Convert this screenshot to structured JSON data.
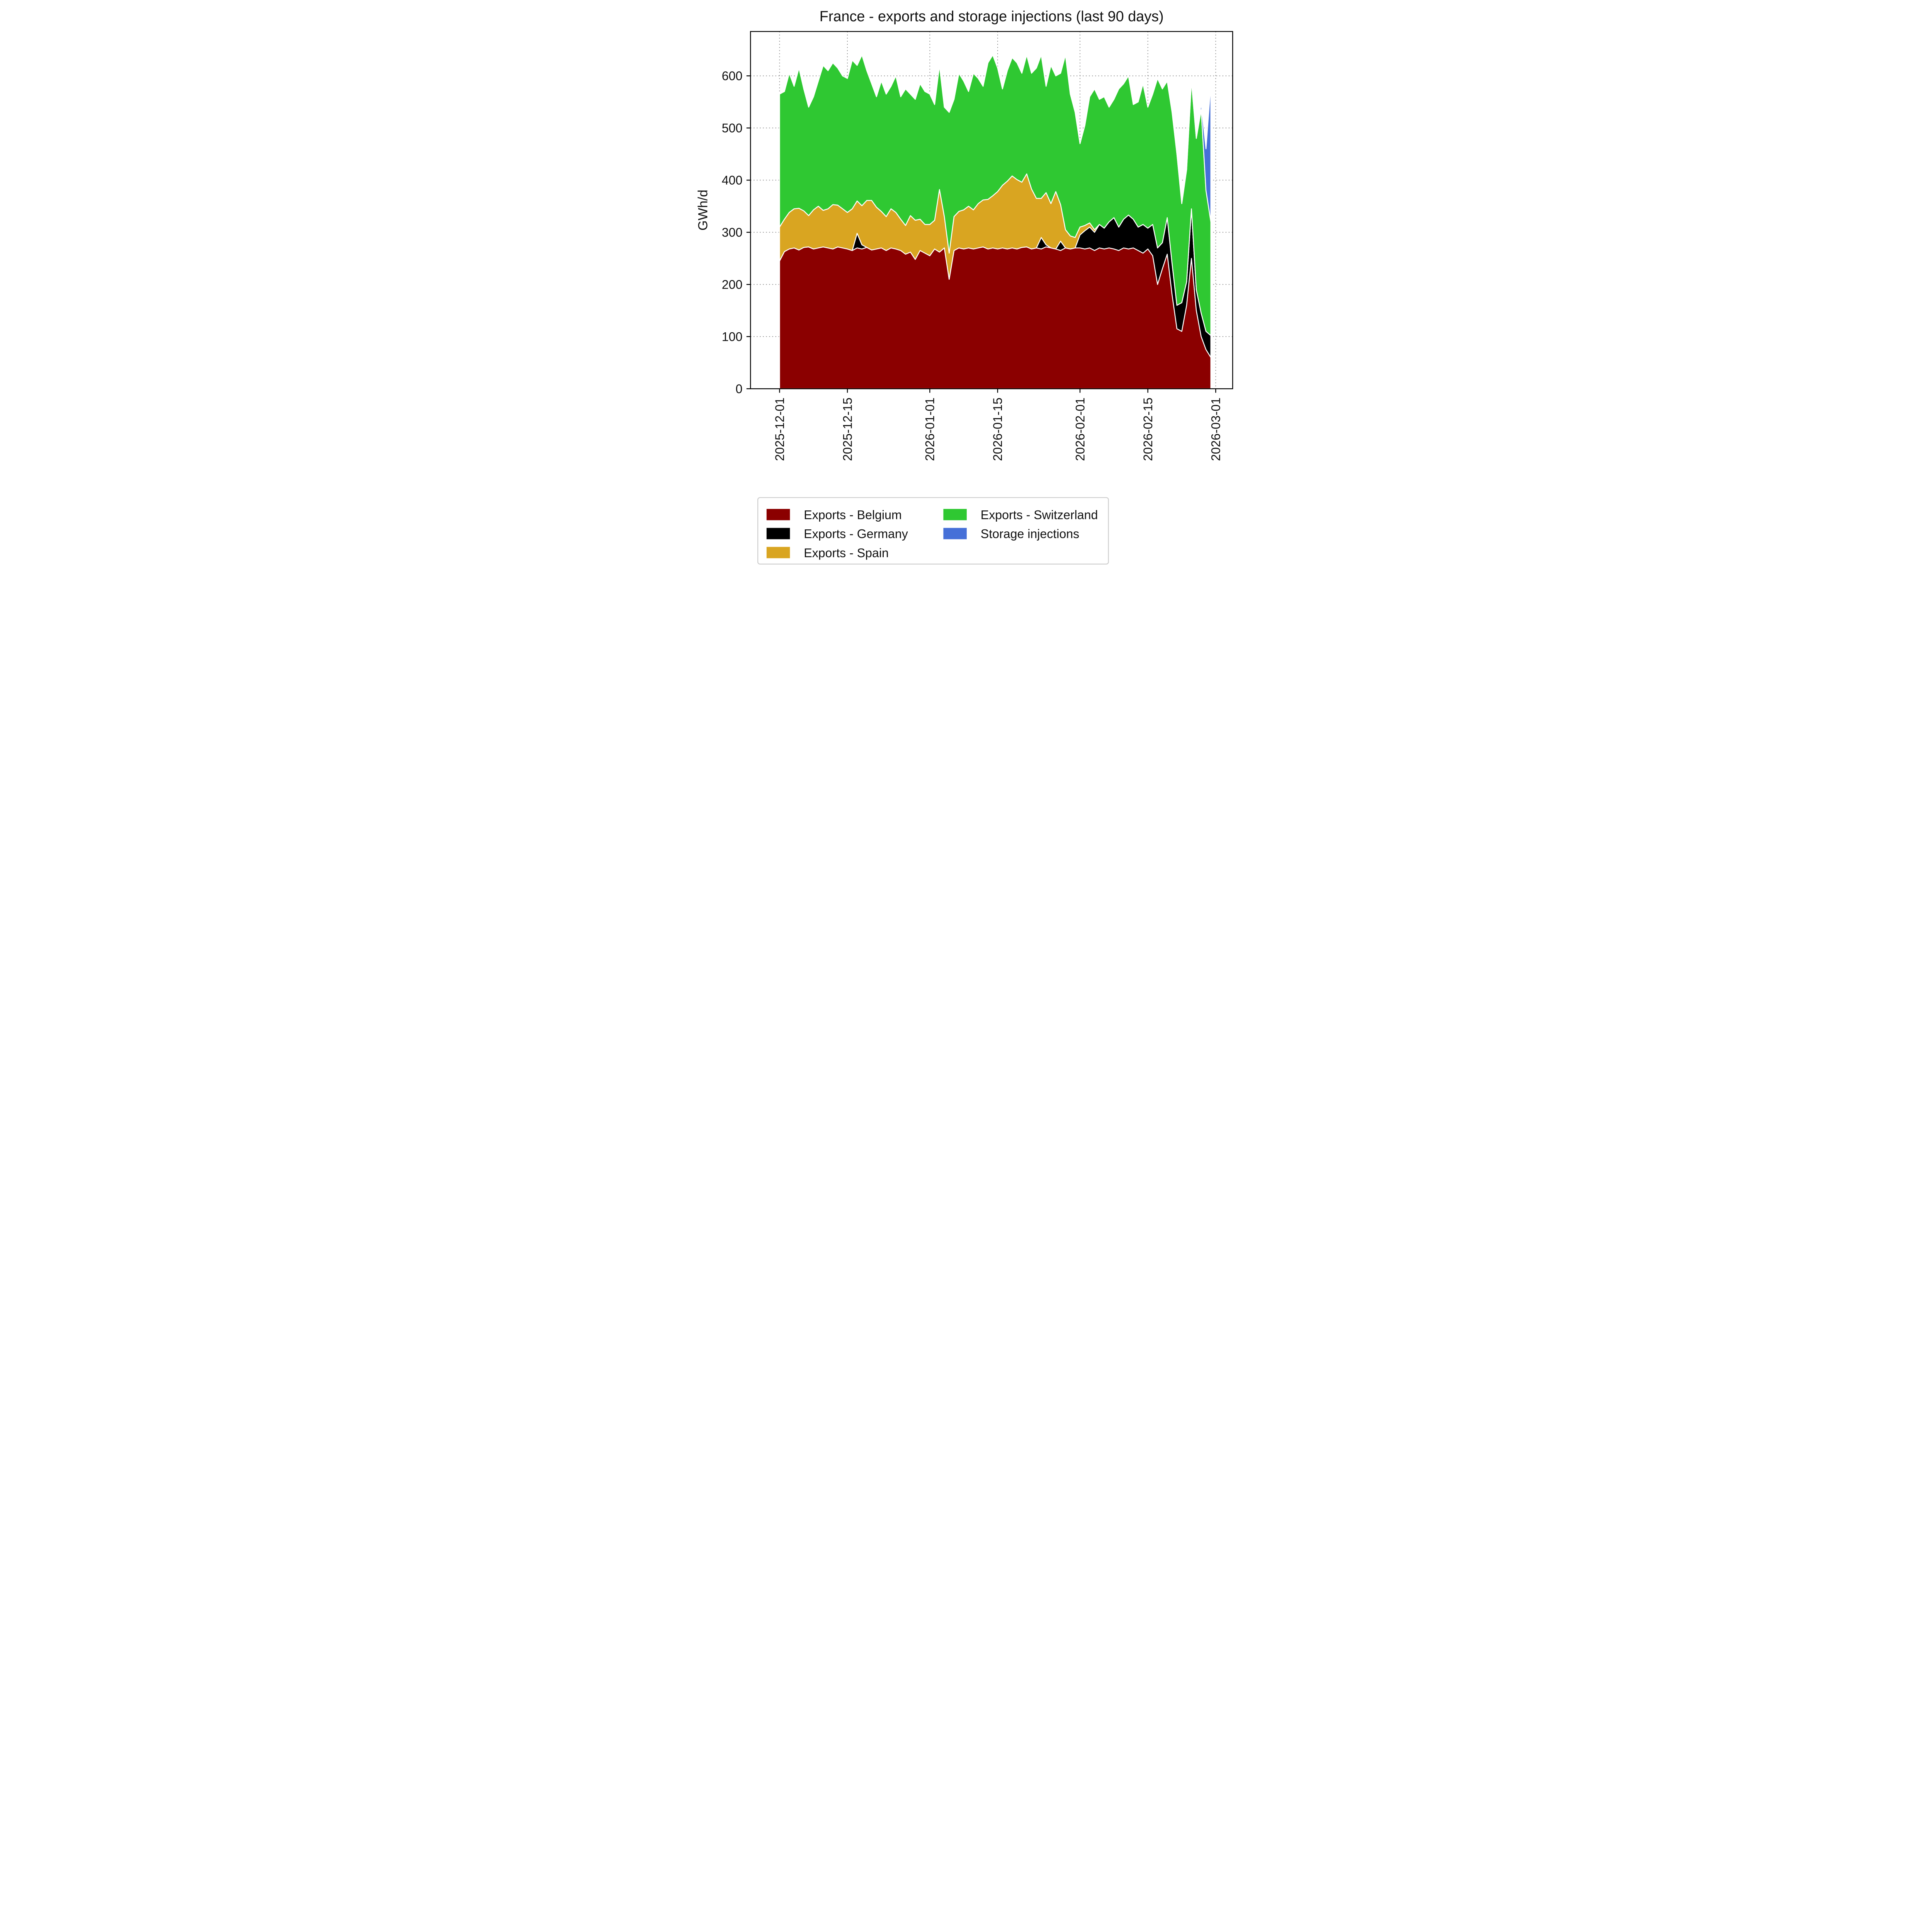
{
  "chart_data": {
    "type": "area",
    "stacked": true,
    "title": "France - exports and storage injections (last 90 days)",
    "xlabel": "",
    "ylabel": "GWh/d",
    "ylim": [
      0,
      685
    ],
    "grid": "dotted",
    "legend_position": "bottom-left",
    "x_ticks": [
      "2025-12-01",
      "2025-12-15",
      "2026-01-01",
      "2026-01-15",
      "2026-02-01",
      "2026-02-15",
      "2026-03-01"
    ],
    "y_ticks": [
      0,
      100,
      200,
      300,
      400,
      500,
      600
    ],
    "x": [
      "2025-12-01",
      "2025-12-02",
      "2025-12-03",
      "2025-12-04",
      "2025-12-05",
      "2025-12-06",
      "2025-12-07",
      "2025-12-08",
      "2025-12-09",
      "2025-12-10",
      "2025-12-11",
      "2025-12-12",
      "2025-12-13",
      "2025-12-14",
      "2025-12-15",
      "2025-12-16",
      "2025-12-17",
      "2025-12-18",
      "2025-12-19",
      "2025-12-20",
      "2025-12-21",
      "2025-12-22",
      "2025-12-23",
      "2025-12-24",
      "2025-12-25",
      "2025-12-26",
      "2025-12-27",
      "2025-12-28",
      "2025-12-29",
      "2025-12-30",
      "2025-12-31",
      "2026-01-01",
      "2026-01-02",
      "2026-01-03",
      "2026-01-04",
      "2026-01-05",
      "2026-01-06",
      "2026-01-07",
      "2026-01-08",
      "2026-01-09",
      "2026-01-10",
      "2026-01-11",
      "2026-01-12",
      "2026-01-13",
      "2026-01-14",
      "2026-01-15",
      "2026-01-16",
      "2026-01-17",
      "2026-01-18",
      "2026-01-19",
      "2026-01-20",
      "2026-01-21",
      "2026-01-22",
      "2026-01-23",
      "2026-01-24",
      "2026-01-25",
      "2026-01-26",
      "2026-01-27",
      "2026-01-28",
      "2026-01-29",
      "2026-01-30",
      "2026-01-31",
      "2026-02-01",
      "2026-02-02",
      "2026-02-03",
      "2026-02-04",
      "2026-02-05",
      "2026-02-06",
      "2026-02-07",
      "2026-02-08",
      "2026-02-09",
      "2026-02-10",
      "2026-02-11",
      "2026-02-12",
      "2026-02-13",
      "2026-02-14",
      "2026-02-15",
      "2026-02-16",
      "2026-02-17",
      "2026-02-18",
      "2026-02-19",
      "2026-02-20",
      "2026-02-21",
      "2026-02-22",
      "2026-02-23",
      "2026-02-24",
      "2026-02-25",
      "2026-02-26",
      "2026-02-27",
      "2026-02-28"
    ],
    "series": [
      {
        "name": "Exports - Belgium",
        "color": "#8b0000",
        "values": [
          245,
          263,
          268,
          270,
          266,
          271,
          272,
          268,
          270,
          272,
          270,
          268,
          272,
          270,
          268,
          265,
          270,
          268,
          271,
          266,
          268,
          270,
          265,
          270,
          268,
          265,
          258,
          262,
          248,
          265,
          260,
          255,
          268,
          262,
          270,
          210,
          265,
          270,
          268,
          270,
          268,
          270,
          272,
          268,
          270,
          268,
          270,
          268,
          270,
          268,
          271,
          272,
          268,
          270,
          268,
          272,
          270,
          268,
          265,
          270,
          268,
          270,
          270,
          268,
          270,
          265,
          270,
          268,
          270,
          268,
          265,
          270,
          268,
          270,
          265,
          260,
          268,
          255,
          200,
          230,
          258,
          180,
          115,
          110,
          160,
          250,
          150,
          100,
          75,
          60
        ]
      },
      {
        "name": "Exports - Germany",
        "color": "#000000",
        "values": [
          0,
          0,
          0,
          0,
          0,
          0,
          0,
          0,
          0,
          0,
          0,
          0,
          0,
          0,
          0,
          0,
          28,
          8,
          0,
          0,
          0,
          0,
          0,
          0,
          0,
          0,
          0,
          0,
          0,
          0,
          0,
          0,
          0,
          0,
          0,
          0,
          0,
          0,
          0,
          0,
          0,
          0,
          0,
          0,
          0,
          0,
          0,
          0,
          0,
          0,
          0,
          0,
          0,
          0,
          22,
          4,
          0,
          0,
          18,
          0,
          0,
          0,
          25,
          35,
          40,
          35,
          45,
          40,
          50,
          60,
          45,
          55,
          65,
          55,
          45,
          55,
          40,
          60,
          70,
          50,
          70,
          60,
          45,
          55,
          45,
          95,
          40,
          45,
          35,
          42
        ]
      },
      {
        "name": "Exports - Spain",
        "color": "#d9a521",
        "values": [
          65,
          62,
          70,
          75,
          80,
          70,
          60,
          75,
          80,
          70,
          75,
          85,
          80,
          75,
          70,
          80,
          62,
          75,
          90,
          95,
          80,
          70,
          65,
          75,
          70,
          60,
          55,
          70,
          75,
          60,
          55,
          60,
          55,
          120,
          60,
          50,
          65,
          70,
          75,
          80,
          75,
          85,
          90,
          95,
          100,
          110,
          120,
          130,
          138,
          133,
          125,
          140,
          115,
          95,
          75,
          100,
          85,
          110,
          70,
          35,
          25,
          20,
          15,
          10,
          8,
          5,
          0,
          0,
          0,
          0,
          0,
          0,
          0,
          0,
          0,
          0,
          0,
          0,
          0,
          0,
          0,
          0,
          0,
          0,
          0,
          0,
          0,
          0,
          0,
          0
        ]
      },
      {
        "name": "Exports - Switzerland",
        "color": "#2fc832",
        "values": [
          255,
          245,
          267,
          235,
          269,
          234,
          208,
          217,
          240,
          278,
          265,
          272,
          263,
          255,
          257,
          285,
          260,
          289,
          249,
          224,
          212,
          250,
          235,
          235,
          262,
          235,
          262,
          233,
          232,
          260,
          255,
          250,
          222,
          238,
          210,
          270,
          225,
          265,
          247,
          220,
          262,
          240,
          218,
          262,
          270,
          237,
          185,
          212,
          227,
          224,
          209,
          228,
          222,
          250,
          275,
          204,
          265,
          222,
          252,
          335,
          272,
          240,
          160,
          192,
          242,
          270,
          240,
          252,
          220,
          227,
          265,
          260,
          267,
          220,
          240,
          270,
          232,
          250,
          325,
          295,
          262,
          290,
          290,
          190,
          215,
          245,
          290,
          390,
          270,
          218
        ]
      },
      {
        "name": "Storage injections",
        "color": "#4670d8",
        "values": [
          0,
          0,
          0,
          0,
          0,
          0,
          0,
          0,
          0,
          0,
          0,
          0,
          0,
          0,
          0,
          0,
          0,
          0,
          0,
          0,
          0,
          0,
          0,
          0,
          0,
          0,
          0,
          0,
          0,
          0,
          0,
          0,
          0,
          0,
          0,
          0,
          0,
          0,
          0,
          0,
          0,
          0,
          0,
          0,
          0,
          0,
          0,
          0,
          0,
          0,
          0,
          0,
          0,
          0,
          0,
          0,
          0,
          0,
          0,
          0,
          0,
          0,
          0,
          0,
          0,
          0,
          0,
          0,
          0,
          0,
          0,
          0,
          0,
          0,
          0,
          0,
          0,
          0,
          0,
          0,
          0,
          0,
          0,
          0,
          0,
          0,
          0,
          12,
          80,
          265
        ]
      }
    ]
  }
}
